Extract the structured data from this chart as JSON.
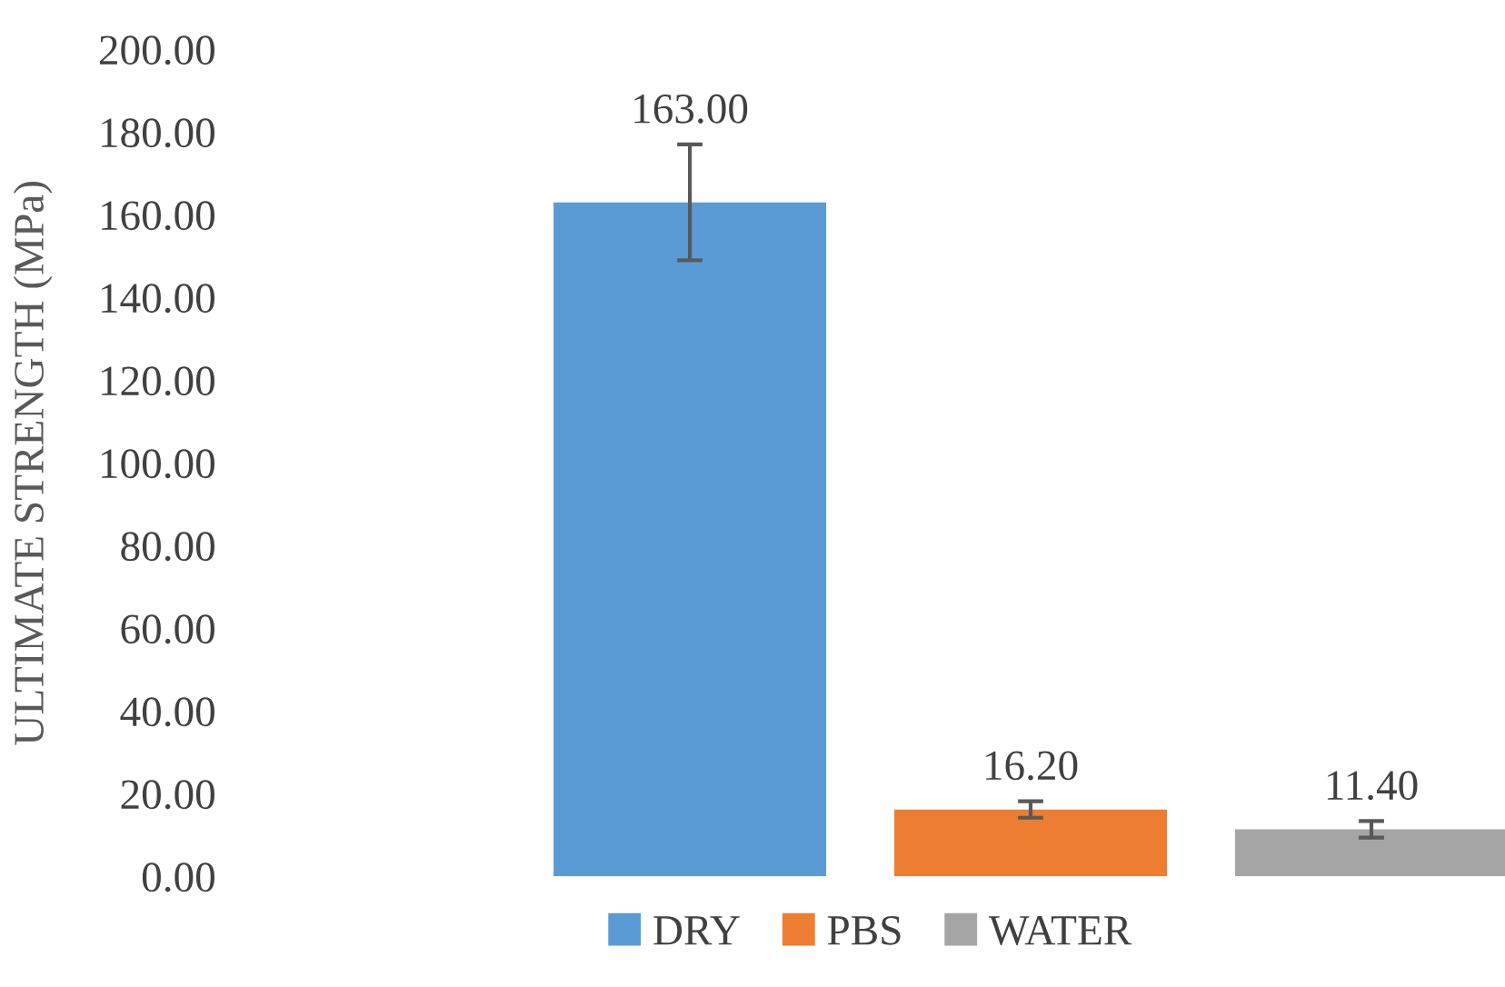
{
  "chart_data": {
    "type": "bar",
    "ylabel": "ULTIMATE STRENGTH (MPa)",
    "categories": [
      null
    ],
    "series": [
      {
        "name": "DRY",
        "color": "#5b9bd5",
        "values": [
          163.0
        ],
        "errors": [
          14
        ],
        "value_labels": [
          "163.00"
        ]
      },
      {
        "name": "PBS",
        "color": "#ed7d31",
        "values": [
          16.2
        ],
        "errors": [
          2
        ],
        "value_labels": [
          "16.20"
        ]
      },
      {
        "name": "WATER",
        "color": "#a5a5a5",
        "values": [
          11.4
        ],
        "errors": [
          2
        ],
        "value_labels": [
          "11.40"
        ]
      }
    ],
    "ylim": [
      0,
      200
    ],
    "yticks": [
      {
        "value": 0,
        "label": "0.00"
      },
      {
        "value": 20,
        "label": "20.00"
      },
      {
        "value": 40,
        "label": "40.00"
      },
      {
        "value": 60,
        "label": "60.00"
      },
      {
        "value": 80,
        "label": "80.00"
      },
      {
        "value": 100,
        "label": "100.00"
      },
      {
        "value": 120,
        "label": "120.00"
      },
      {
        "value": 140,
        "label": "140.00"
      },
      {
        "value": 160,
        "label": "160.00"
      },
      {
        "value": 180,
        "label": "180.00"
      },
      {
        "value": 200,
        "label": "200.00"
      }
    ],
    "grid": false,
    "legend": "bottom"
  }
}
